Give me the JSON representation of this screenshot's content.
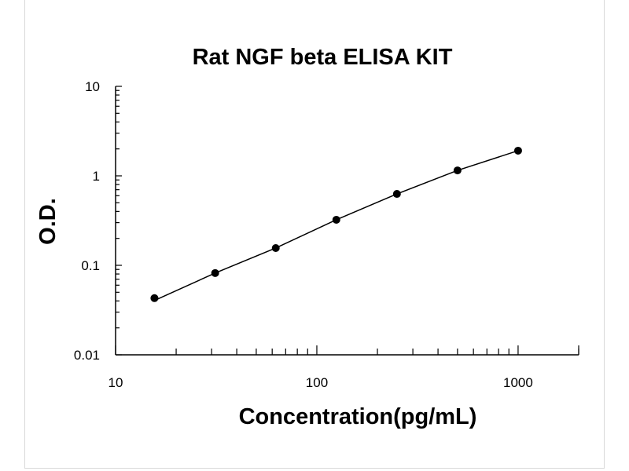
{
  "chart_data": {
    "type": "scatter",
    "title": "Rat NGF beta ELISA KIT",
    "xlabel": "Concentration(pg/mL)",
    "ylabel": "O.D.",
    "xscale": "log",
    "yscale": "log",
    "xlim": [
      10,
      2000
    ],
    "ylim": [
      0.01,
      10
    ],
    "x_ticks": [
      "10",
      "100",
      "1000"
    ],
    "y_ticks": [
      "0.01",
      "0.1",
      "1",
      "10"
    ],
    "grid": false,
    "legend": "none",
    "fit_line": true,
    "series": [
      {
        "x": [
          15.6,
          31.25,
          62.5,
          125,
          250,
          500,
          1000
        ],
        "y": [
          0.043,
          0.082,
          0.156,
          0.323,
          0.628,
          1.15,
          1.91
        ]
      }
    ],
    "color": "#000000"
  }
}
